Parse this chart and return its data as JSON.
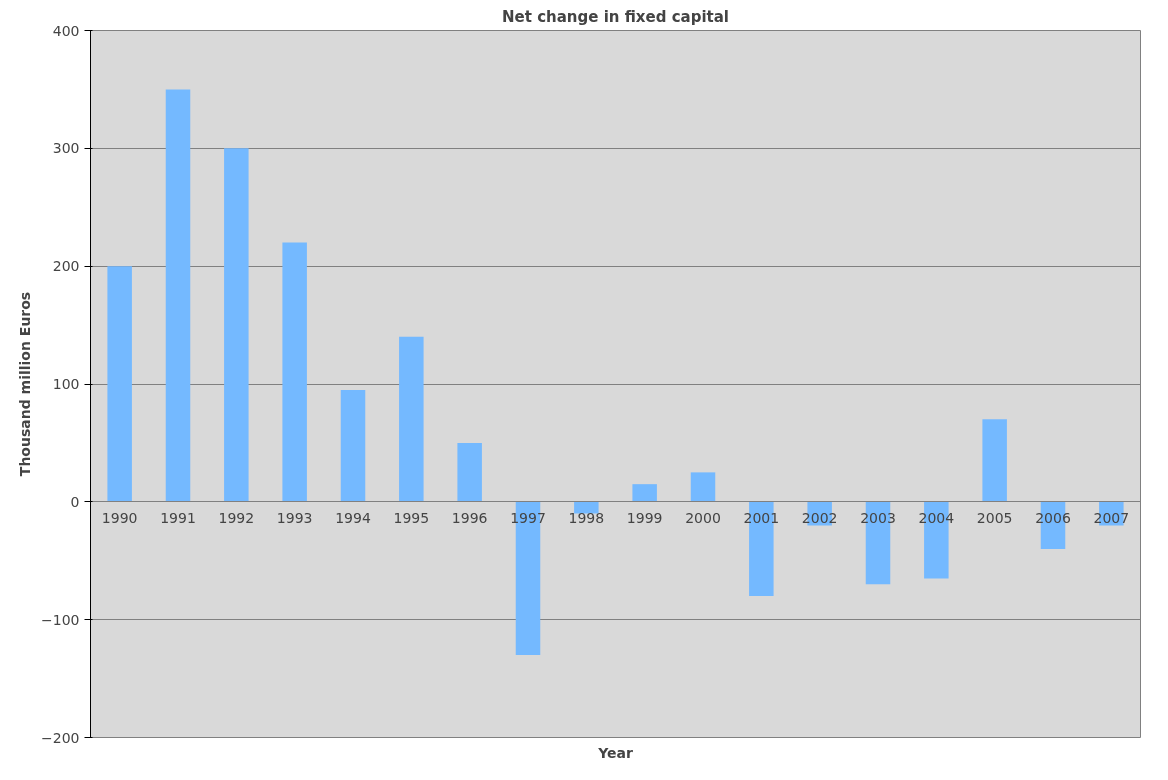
{
  "chart_data": {
    "type": "bar",
    "title": "Net change in fixed capital",
    "xlabel": "Year",
    "ylabel": "Thousand million Euros",
    "categories": [
      "1990",
      "1991",
      "1992",
      "1993",
      "1994",
      "1995",
      "1996",
      "1997",
      "1998",
      "1999",
      "2000",
      "2001",
      "2002",
      "2003",
      "2004",
      "2005",
      "2006",
      "2007"
    ],
    "values": [
      200,
      350,
      300,
      220,
      95,
      140,
      50,
      -130,
      -10,
      15,
      25,
      -80,
      -20,
      -70,
      -65,
      70,
      -40,
      -20
    ],
    "color": "#74b9ff",
    "ylim": [
      -200,
      400
    ],
    "yticks": [
      -200,
      -100,
      0,
      100,
      200,
      300,
      400
    ],
    "grid": "y"
  }
}
